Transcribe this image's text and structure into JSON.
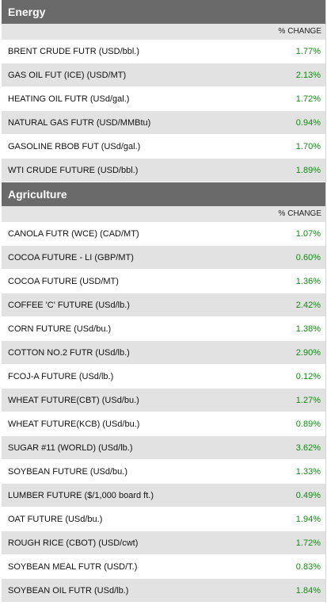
{
  "sections": [
    {
      "title": "Energy",
      "column_header": "% CHANGE",
      "rows": [
        {
          "name": "BRENT CRUDE FUTR (USD/bbl.)",
          "change": "1.77%"
        },
        {
          "name": "GAS OIL FUT (ICE) (USD/MT)",
          "change": "2.13%"
        },
        {
          "name": "HEATING OIL FUTR (USd/gal.)",
          "change": "1.72%"
        },
        {
          "name": "NATURAL GAS FUTR (USD/MMBtu)",
          "change": "0.94%"
        },
        {
          "name": "GASOLINE RBOB FUT (USd/gal.)",
          "change": "1.70%"
        },
        {
          "name": "WTI CRUDE FUTURE (USD/bbl.)",
          "change": "1.89%"
        }
      ]
    },
    {
      "title": "Agriculture",
      "column_header": "% CHANGE",
      "rows": [
        {
          "name": "CANOLA FUTR (WCE) (CAD/MT)",
          "change": "1.07%"
        },
        {
          "name": "COCOA FUTURE - LI (GBP/MT)",
          "change": "0.60%"
        },
        {
          "name": "COCOA FUTURE (USD/MT)",
          "change": "1.36%"
        },
        {
          "name": "COFFEE 'C' FUTURE (USd/lb.)",
          "change": "2.42%"
        },
        {
          "name": "CORN FUTURE (USd/bu.)",
          "change": "1.38%"
        },
        {
          "name": "COTTON NO.2 FUTR (USd/lb.)",
          "change": "2.90%"
        },
        {
          "name": "FCOJ-A FUTURE (USd/lb.)",
          "change": "0.12%"
        },
        {
          "name": "WHEAT FUTURE(CBT) (USd/bu.)",
          "change": "1.27%"
        },
        {
          "name": "WHEAT FUTURE(KCB) (USd/bu.)",
          "change": "0.89%"
        },
        {
          "name": "SUGAR #11 (WORLD) (USd/lb.)",
          "change": "3.62%"
        },
        {
          "name": "SOYBEAN FUTURE (USd/bu.)",
          "change": "1.33%"
        },
        {
          "name": "LUMBER FUTURE ($/1,000 board ft.)",
          "change": "0.49%"
        },
        {
          "name": "OAT FUTURE (USd/bu.)",
          "change": "1.94%"
        },
        {
          "name": "ROUGH RICE (CBOT) (USD/cwt)",
          "change": "1.72%"
        },
        {
          "name": "SOYBEAN MEAL FUTR (USD/T.)",
          "change": "0.83%"
        },
        {
          "name": "SOYBEAN OIL FUTR (USd/lb.)",
          "change": "1.84%"
        }
      ]
    }
  ]
}
